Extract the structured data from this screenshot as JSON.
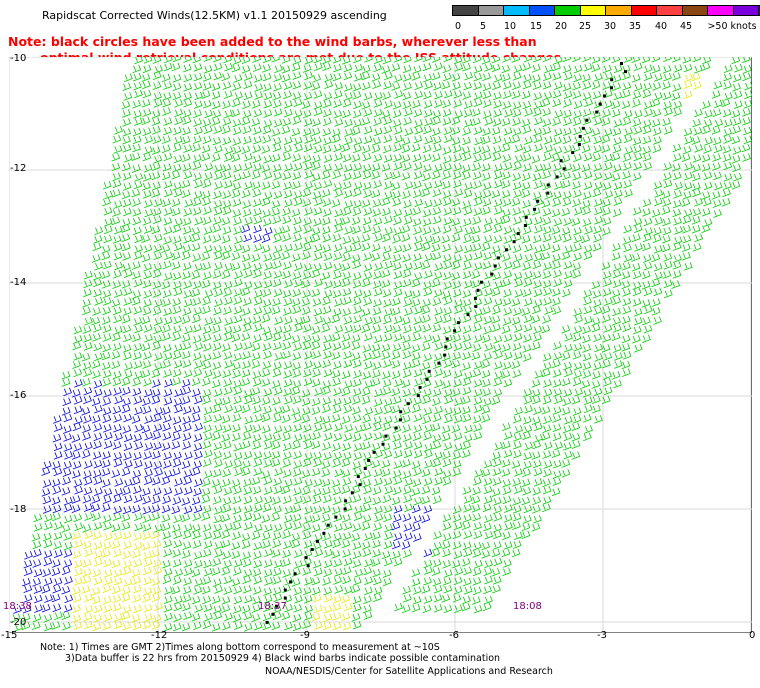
{
  "title": "Rapidscat Corrected Winds(12.5KM) v1.1 20150929 ascending",
  "note": {
    "line1": "Note: black circles have been added to the wind barbs, wherever less than",
    "line2": "optimal wind retrieval conditions are met due to the ISS attitude changes."
  },
  "colorbar": {
    "labels": [
      "0",
      "5",
      "10",
      "15",
      "20",
      "25",
      "30",
      "35",
      "40",
      "45",
      ">50 knots"
    ],
    "colors": [
      "#444444",
      "#999999",
      "#00bbff",
      "#0050ff",
      "#00cc00",
      "#ffff00",
      "#ffaa00",
      "#ff0000",
      "#ff4040",
      "#8b4513",
      "#ff00ff",
      "#7700dd",
      "#4b0082"
    ]
  },
  "map": {
    "y_ticks": [
      "-10",
      "-12",
      "-14",
      "-16",
      "-18",
      "-20"
    ],
    "x_ticks": [
      "-15",
      "-12",
      "-9",
      "-6",
      "-3",
      "0"
    ],
    "time_labels": [
      "18:38",
      "18:37",
      "18:08"
    ],
    "swath_colors": {
      "green": "#00cc00",
      "blue": "#0000dd",
      "yellow": "#e8e800",
      "flag": "#000000"
    }
  },
  "footer": {
    "line1": "Note: 1) Times are GMT 2)Times along bottom correspond to measurement at ~10S",
    "line2": "3)Data buffer is 22 hrs from 20150929 4) Black wind barbs indicate possible contamination",
    "line3": "NOAA/NESDIS/Center for Satellite Applications and Research"
  }
}
